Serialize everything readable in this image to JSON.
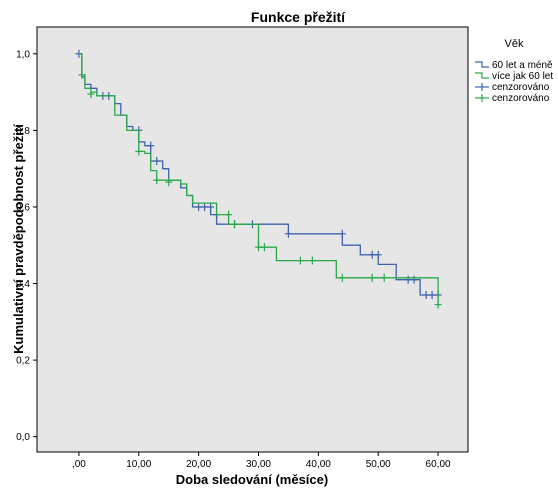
{
  "chart_data": {
    "type": "line",
    "title": "Funkce přežití",
    "xlabel": "Doba sledování (měsíce)",
    "ylabel": "Kumulativní pravděpodobnost přežití",
    "xlim": [
      -7,
      65
    ],
    "ylim": [
      -0.04,
      1.07
    ],
    "xticks": [
      0,
      10,
      20,
      30,
      40,
      50,
      60
    ],
    "xtick_labels": [
      ",00",
      "10,00",
      "20,00",
      "30,00",
      "40,00",
      "50,00",
      "60,00"
    ],
    "yticks": [
      0,
      0.2,
      0.4,
      0.6,
      0.8,
      1.0
    ],
    "ytick_labels": [
      "0,0",
      "0,2",
      "0,4",
      "0,6",
      "0,8",
      "1,0"
    ],
    "grid": false,
    "plot_background": "#e6e6e6",
    "legend": {
      "title": "Věk",
      "position": "right",
      "entries": [
        "60 let a méně",
        "více jak 60 let",
        "cenzorováno",
        "cenzorováno"
      ]
    },
    "series": [
      {
        "name": "60 let a méně",
        "color": "#3f62ad",
        "steps": [
          [
            0,
            1.0
          ],
          [
            0.5,
            0.94
          ],
          [
            1,
            0.92
          ],
          [
            2,
            0.91
          ],
          [
            3,
            0.89
          ],
          [
            6,
            0.87
          ],
          [
            7,
            0.84
          ],
          [
            8,
            0.81
          ],
          [
            9,
            0.8
          ],
          [
            10,
            0.77
          ],
          [
            11,
            0.76
          ],
          [
            12,
            0.72
          ],
          [
            14,
            0.7
          ],
          [
            15,
            0.67
          ],
          [
            17,
            0.65
          ],
          [
            18,
            0.63
          ],
          [
            19,
            0.6
          ],
          [
            22,
            0.58
          ],
          [
            23,
            0.555
          ],
          [
            26,
            0.555
          ],
          [
            35,
            0.53
          ],
          [
            44,
            0.5
          ],
          [
            47,
            0.475
          ],
          [
            50,
            0.45
          ],
          [
            53,
            0.41
          ],
          [
            57,
            0.37
          ],
          [
            60,
            0.37
          ]
        ],
        "censored": [
          [
            0,
            1.0
          ],
          [
            4,
            0.89
          ],
          [
            5,
            0.89
          ],
          [
            10,
            0.8
          ],
          [
            12,
            0.76
          ],
          [
            13,
            0.72
          ],
          [
            20,
            0.6
          ],
          [
            21,
            0.6
          ],
          [
            22,
            0.6
          ],
          [
            23,
            0.58
          ],
          [
            26,
            0.555
          ],
          [
            29,
            0.555
          ],
          [
            35,
            0.53
          ],
          [
            44,
            0.53
          ],
          [
            49,
            0.475
          ],
          [
            50,
            0.475
          ],
          [
            55,
            0.41
          ],
          [
            56,
            0.41
          ],
          [
            58,
            0.37
          ],
          [
            59,
            0.37
          ],
          [
            60,
            0.37
          ]
        ]
      },
      {
        "name": "více jak 60 let",
        "color": "#2aa84a",
        "steps": [
          [
            0,
            1.0
          ],
          [
            0.5,
            0.945
          ],
          [
            1,
            0.91
          ],
          [
            2,
            0.9
          ],
          [
            3,
            0.89
          ],
          [
            6,
            0.84
          ],
          [
            8,
            0.8
          ],
          [
            10,
            0.745
          ],
          [
            11,
            0.74
          ],
          [
            12,
            0.695
          ],
          [
            13,
            0.67
          ],
          [
            17,
            0.66
          ],
          [
            18,
            0.63
          ],
          [
            19,
            0.61
          ],
          [
            23,
            0.58
          ],
          [
            25,
            0.555
          ],
          [
            30,
            0.495
          ],
          [
            33,
            0.46
          ],
          [
            43,
            0.415
          ],
          [
            60,
            0.415
          ],
          [
            60,
            0.345
          ]
        ],
        "censored": [
          [
            0.5,
            0.945
          ],
          [
            2,
            0.895
          ],
          [
            10,
            0.745
          ],
          [
            13,
            0.67
          ],
          [
            15,
            0.665
          ],
          [
            25,
            0.58
          ],
          [
            26,
            0.555
          ],
          [
            30,
            0.495
          ],
          [
            31,
            0.495
          ],
          [
            37,
            0.46
          ],
          [
            39,
            0.46
          ],
          [
            44,
            0.415
          ],
          [
            49,
            0.415
          ],
          [
            51,
            0.415
          ],
          [
            60,
            0.345
          ]
        ]
      }
    ]
  }
}
